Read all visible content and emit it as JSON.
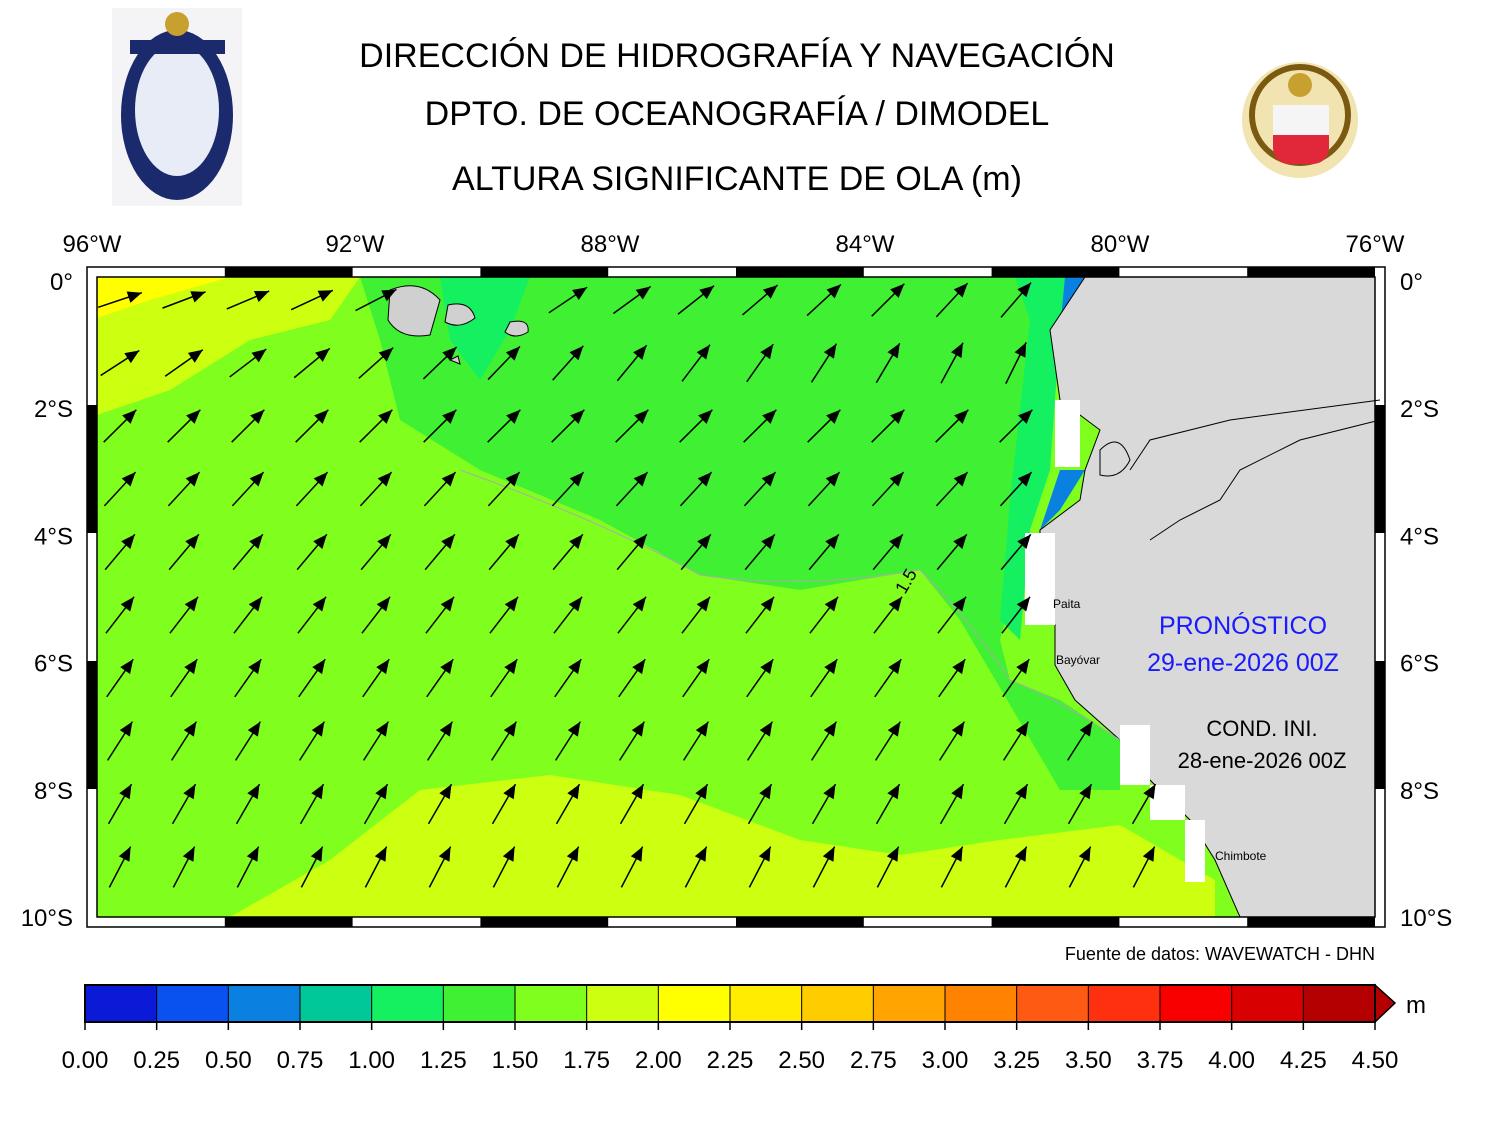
{
  "header": {
    "title_lines": [
      "DIRECCIÓN DE HIDROGRAFÍA Y NAVEGACIÓN",
      "DPTO. DE OCEANOGRAFÍA / DIMODEL",
      "ALTURA SIGNIFICANTE DE OLA (m)"
    ]
  },
  "map": {
    "lon_labels": [
      "96°W",
      "92°W",
      "88°W",
      "84°W",
      "80°W",
      "76°W"
    ],
    "lat_labels": [
      "0°",
      "2°S",
      "4°S",
      "6°S",
      "8°S",
      "10°S"
    ],
    "contour_label": "1.5",
    "places": [
      "Paita",
      "Bayóvar",
      "Chimbote"
    ],
    "forecast_label": "PRONÓSTICO",
    "forecast_date": "29-ene-2026 00Z",
    "init_label": "COND. INI.",
    "init_date": "28-ene-2026 00Z",
    "source": "Fuente de datos: WAVEWATCH - DHN"
  },
  "colorbar": {
    "ticks": [
      "0.00",
      "0.25",
      "0.50",
      "0.75",
      "1.00",
      "1.25",
      "1.50",
      "1.75",
      "2.00",
      "2.25",
      "2.50",
      "2.75",
      "3.00",
      "3.25",
      "3.50",
      "3.75",
      "4.00",
      "4.25",
      "4.50"
    ],
    "colors": [
      "#0a1ad6",
      "#0a52f0",
      "#0a80e0",
      "#00c898",
      "#14f060",
      "#40f032",
      "#80ff1e",
      "#ccff10",
      "#ffff00",
      "#ffec00",
      "#ffcc00",
      "#ffa400",
      "#ff8200",
      "#ff5a14",
      "#ff3010",
      "#f80000",
      "#d80000",
      "#b40000"
    ],
    "unit": "m"
  }
}
